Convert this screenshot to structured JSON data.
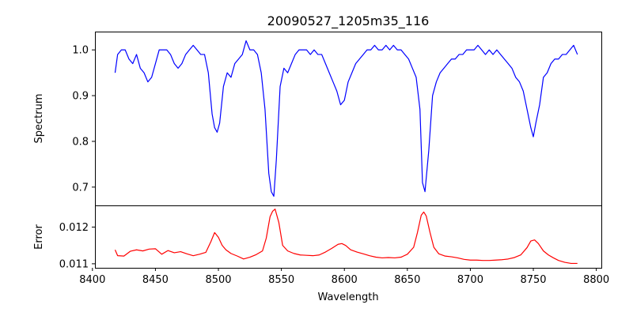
{
  "chart_data": {
    "type": "line",
    "title": "20090527_1205m35_116",
    "xlabel": "Wavelength",
    "x_ticks": [
      8400,
      8450,
      8500,
      8550,
      8600,
      8650,
      8700,
      8750,
      8800
    ],
    "xlim": [
      8402,
      8804
    ],
    "grid": false,
    "panels": [
      {
        "name": "spectrum",
        "ylabel": "Spectrum",
        "ylim": [
          0.66,
          1.04
        ],
        "y_ticks": [
          0.7,
          0.8,
          0.9,
          1.0
        ],
        "y_tick_labels": [
          "0.7",
          "0.8",
          "0.9",
          "1.0"
        ],
        "series": [
          {
            "color": "#0000ff",
            "x": [
              8418,
              8420,
              8423,
              8426,
              8429,
              8432,
              8435,
              8438,
              8441,
              8444,
              8447,
              8450,
              8453,
              8456,
              8459,
              8462,
              8465,
              8468,
              8471,
              8474,
              8477,
              8480,
              8483,
              8486,
              8489,
              8492,
              8495,
              8497,
              8499,
              8501,
              8504,
              8507,
              8510,
              8513,
              8516,
              8519,
              8522,
              8525,
              8528,
              8531,
              8534,
              8537,
              8540,
              8542,
              8544,
              8546,
              8549,
              8552,
              8555,
              8558,
              8561,
              8564,
              8567,
              8570,
              8573,
              8576,
              8579,
              8582,
              8585,
              8588,
              8591,
              8594,
              8597,
              8600,
              8603,
              8606,
              8609,
              8612,
              8615,
              8618,
              8621,
              8624,
              8627,
              8630,
              8633,
              8636,
              8639,
              8642,
              8645,
              8648,
              8651,
              8654,
              8657,
              8660,
              8662,
              8664,
              8667,
              8670,
              8673,
              8676,
              8679,
              8682,
              8685,
              8688,
              8691,
              8694,
              8697,
              8700,
              8703,
              8706,
              8709,
              8712,
              8715,
              8718,
              8721,
              8724,
              8727,
              8730,
              8733,
              8736,
              8739,
              8742,
              8745,
              8748,
              8750,
              8752,
              8755,
              8758,
              8761,
              8764,
              8767,
              8770,
              8773,
              8776,
              8779,
              8782,
              8785
            ],
            "y": [
              0.95,
              0.99,
              1.0,
              1.0,
              0.98,
              0.97,
              0.99,
              0.96,
              0.95,
              0.93,
              0.94,
              0.97,
              1.0,
              1.0,
              1.0,
              0.99,
              0.97,
              0.96,
              0.97,
              0.99,
              1.0,
              1.01,
              1.0,
              0.99,
              0.99,
              0.95,
              0.86,
              0.83,
              0.82,
              0.84,
              0.92,
              0.95,
              0.94,
              0.97,
              0.98,
              0.99,
              1.02,
              1.0,
              1.0,
              0.99,
              0.95,
              0.87,
              0.73,
              0.69,
              0.68,
              0.76,
              0.92,
              0.96,
              0.95,
              0.97,
              0.99,
              1.0,
              1.0,
              1.0,
              0.99,
              1.0,
              0.99,
              0.99,
              0.97,
              0.95,
              0.93,
              0.91,
              0.88,
              0.89,
              0.93,
              0.95,
              0.97,
              0.98,
              0.99,
              1.0,
              1.0,
              1.01,
              1.0,
              1.0,
              1.01,
              1.0,
              1.01,
              1.0,
              1.0,
              0.99,
              0.98,
              0.96,
              0.94,
              0.87,
              0.71,
              0.69,
              0.78,
              0.9,
              0.93,
              0.95,
              0.96,
              0.97,
              0.98,
              0.98,
              0.99,
              0.99,
              1.0,
              1.0,
              1.0,
              1.01,
              1.0,
              0.99,
              1.0,
              0.99,
              1.0,
              0.99,
              0.98,
              0.97,
              0.96,
              0.94,
              0.93,
              0.91,
              0.87,
              0.83,
              0.81,
              0.84,
              0.88,
              0.94,
              0.95,
              0.97,
              0.98,
              0.98,
              0.99,
              0.99,
              1.0,
              1.01,
              0.99
            ]
          }
        ]
      },
      {
        "name": "error",
        "ylabel": "Error",
        "ylim": [
          0.01089,
          0.01259
        ],
        "y_ticks": [
          0.011,
          0.012
        ],
        "y_tick_labels": [
          "0.011",
          "0.012"
        ],
        "series": [
          {
            "color": "#ff0000",
            "x": [
              8418,
              8420,
              8425,
              8430,
              8435,
              8440,
              8445,
              8450,
              8455,
              8460,
              8465,
              8470,
              8475,
              8480,
              8485,
              8490,
              8494,
              8497,
              8500,
              8503,
              8506,
              8510,
              8515,
              8520,
              8525,
              8530,
              8535,
              8538,
              8541,
              8543,
              8545,
              8548,
              8551,
              8555,
              8560,
              8565,
              8570,
              8575,
              8580,
              8585,
              8590,
              8595,
              8598,
              8601,
              8605,
              8610,
              8615,
              8620,
              8625,
              8630,
              8635,
              8640,
              8645,
              8650,
              8655,
              8658,
              8661,
              8663,
              8665,
              8668,
              8671,
              8675,
              8680,
              8685,
              8690,
              8695,
              8700,
              8705,
              8710,
              8715,
              8720,
              8725,
              8730,
              8735,
              8740,
              8745,
              8748,
              8751,
              8754,
              8758,
              8762,
              8766,
              8770,
              8775,
              8780,
              8785
            ],
            "y": [
              0.01138,
              0.01122,
              0.01121,
              0.01134,
              0.01138,
              0.01135,
              0.0114,
              0.01141,
              0.01126,
              0.01136,
              0.0113,
              0.01133,
              0.01127,
              0.01122,
              0.01126,
              0.01131,
              0.0116,
              0.01185,
              0.01172,
              0.0115,
              0.01138,
              0.01128,
              0.01121,
              0.01113,
              0.01118,
              0.01125,
              0.01135,
              0.0117,
              0.01228,
              0.01243,
              0.01249,
              0.01212,
              0.0115,
              0.01135,
              0.01128,
              0.01124,
              0.01123,
              0.01122,
              0.01124,
              0.01132,
              0.01142,
              0.01153,
              0.01155,
              0.0115,
              0.01138,
              0.01132,
              0.01127,
              0.01122,
              0.01118,
              0.01116,
              0.01117,
              0.01116,
              0.01118,
              0.01126,
              0.01145,
              0.01185,
              0.01232,
              0.01241,
              0.0123,
              0.01185,
              0.01145,
              0.01127,
              0.01121,
              0.01119,
              0.01116,
              0.01112,
              0.0111,
              0.0111,
              0.01109,
              0.01109,
              0.0111,
              0.01111,
              0.01113,
              0.01117,
              0.01124,
              0.01144,
              0.01162,
              0.01165,
              0.01155,
              0.01135,
              0.01124,
              0.01116,
              0.01109,
              0.01104,
              0.01101,
              0.01101
            ]
          }
        ]
      }
    ]
  }
}
